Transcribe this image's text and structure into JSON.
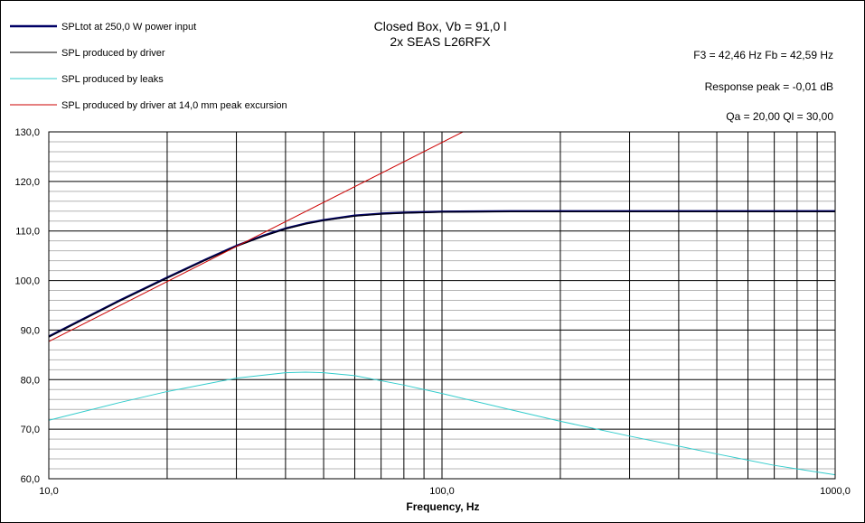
{
  "chart_data": {
    "type": "line",
    "title": "Closed Box, Vb = 91,0 l",
    "subtitle": "2x SEAS L26RFX",
    "xlabel": "Frequency, Hz",
    "ylabel": "",
    "x_scale": "log",
    "xlim": [
      10,
      1000
    ],
    "ylim": [
      60,
      130
    ],
    "x_ticks": [
      {
        "value": 10,
        "label": "10,0"
      },
      {
        "value": 100,
        "label": "100,0"
      },
      {
        "value": 1000,
        "label": "1000,0"
      }
    ],
    "y_ticks": [
      {
        "value": 60,
        "label": "60,0"
      },
      {
        "value": 70,
        "label": "70,0"
      },
      {
        "value": 80,
        "label": "80,0"
      },
      {
        "value": 90,
        "label": "90,0"
      },
      {
        "value": 100,
        "label": "100,0"
      },
      {
        "value": 110,
        "label": "110,0"
      },
      {
        "value": 120,
        "label": "120,0"
      },
      {
        "value": 130,
        "label": "130,0"
      }
    ],
    "grid": true,
    "legend_position": "top-left",
    "info_lines": [
      "F3 = 42,46  Hz   Fb = 42,59  Hz",
      "Response peak = -0,01  dB",
      "Qa = 20,00   Ql = 30,00"
    ],
    "series": [
      {
        "name": "SPLtot at 250,0 W power input",
        "color": "#000066",
        "width": "thick",
        "x": [
          10,
          12,
          15,
          20,
          25,
          30,
          35,
          40,
          45,
          50,
          60,
          70,
          80,
          100,
          150,
          200,
          300,
          500,
          700,
          1000
        ],
        "y": [
          88.7,
          91.9,
          95.8,
          100.6,
          104.2,
          107.0,
          109.0,
          110.5,
          111.5,
          112.2,
          113.1,
          113.5,
          113.7,
          113.9,
          114.0,
          114.0,
          114.0,
          114.0,
          114.0,
          114.0
        ]
      },
      {
        "name": "SPL produced by driver",
        "color": "#000000",
        "width": "thin",
        "x": [
          10,
          12,
          15,
          20,
          25,
          30,
          35,
          40,
          45,
          50,
          60,
          70,
          80,
          100,
          150,
          200,
          300,
          500,
          700,
          1000
        ],
        "y": [
          88.6,
          91.8,
          95.7,
          100.5,
          104.1,
          106.9,
          108.9,
          110.4,
          111.4,
          112.1,
          113.0,
          113.4,
          113.6,
          113.8,
          113.9,
          113.9,
          113.9,
          113.9,
          113.9,
          113.9
        ]
      },
      {
        "name": "SPL produced by leaks",
        "color": "#33cccc",
        "width": "thin",
        "x": [
          10,
          15,
          20,
          30,
          40,
          45,
          50,
          60,
          80,
          100,
          150,
          200,
          300,
          500,
          700,
          1000
        ],
        "y": [
          71.8,
          75.3,
          77.6,
          80.3,
          81.4,
          81.5,
          81.4,
          80.8,
          78.9,
          77.2,
          73.9,
          71.6,
          68.6,
          65.0,
          62.7,
          60.8
        ]
      },
      {
        "name": "SPL produced by driver at 14,0 mm peak excursion",
        "color": "#cc0000",
        "width": "thin",
        "x": [
          10,
          113
        ],
        "y": [
          87.7,
          130.0
        ]
      }
    ]
  }
}
